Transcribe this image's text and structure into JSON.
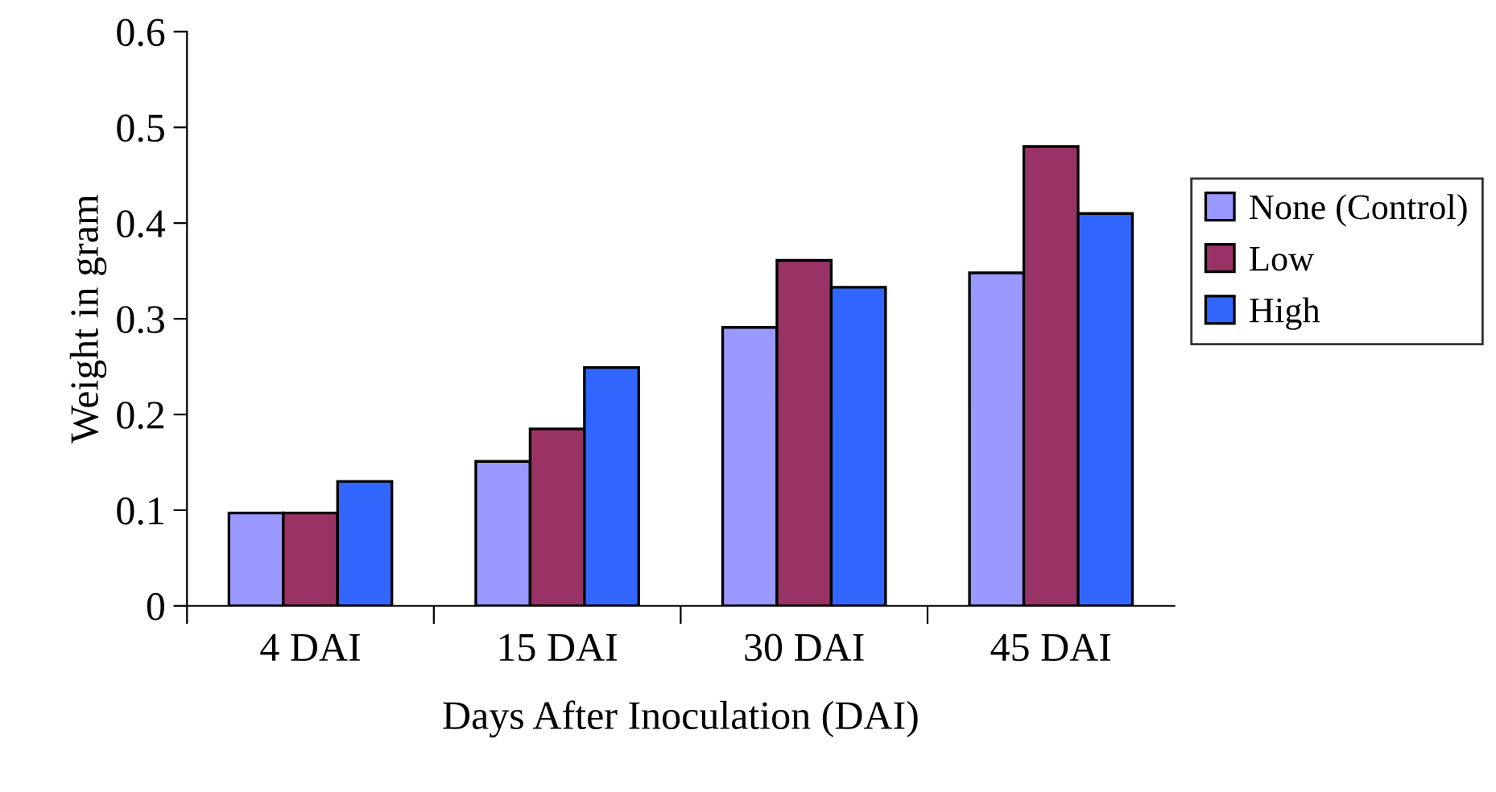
{
  "chart_data": {
    "type": "bar",
    "xlabel": "Days After Inoculation (DAI)",
    "ylabel": "Weight in gram",
    "categories": [
      "4 DAI",
      "15 DAI",
      "30 DAI",
      "45 DAI"
    ],
    "series": [
      {
        "name": "None (Control)",
        "color": "#9999ff",
        "values": [
          0.097,
          0.151,
          0.291,
          0.348
        ]
      },
      {
        "name": "Low",
        "color": "#993366",
        "values": [
          0.097,
          0.185,
          0.361,
          0.48
        ]
      },
      {
        "name": "High",
        "color": "#3366ff",
        "values": [
          0.13,
          0.249,
          0.333,
          0.41
        ]
      }
    ],
    "ylim": [
      0,
      0.6
    ],
    "yticks": [
      0,
      0.1,
      0.2,
      0.3,
      0.4,
      0.5,
      0.6
    ],
    "grid": false,
    "legend": "right"
  }
}
